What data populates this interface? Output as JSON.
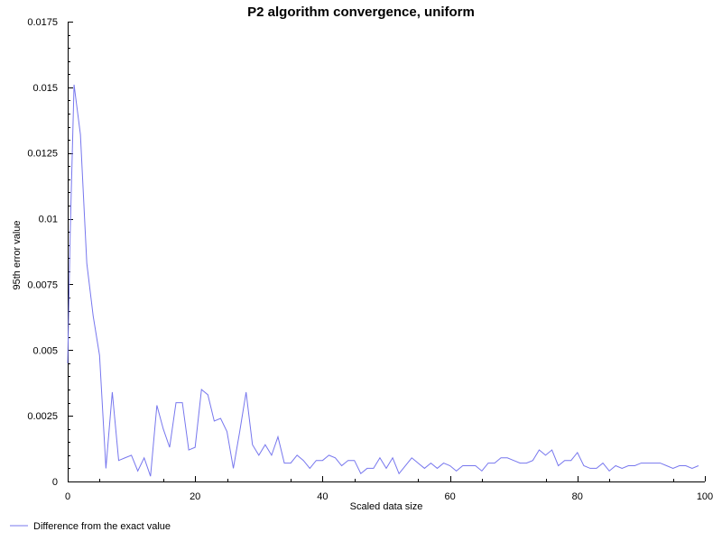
{
  "chart_data": {
    "type": "line",
    "title": "P2 algorithm convergence, uniform",
    "xlabel": "Scaled data size",
    "ylabel": "95th error value",
    "xlim": [
      0,
      100
    ],
    "ylim": [
      0,
      0.0175
    ],
    "xticks": [
      0,
      20,
      40,
      60,
      80,
      100
    ],
    "xtick_labels": [
      "0",
      "20",
      "40",
      "60",
      "80",
      "100"
    ],
    "yticks": [
      0,
      0.0025,
      0.005,
      0.0075,
      0.01,
      0.0125,
      0.015,
      0.0175
    ],
    "ytick_labels": [
      "0",
      "0.0025",
      "0.005",
      "0.0075",
      "0.01",
      "0.0125",
      "0.015",
      "0.0175"
    ],
    "grid": false,
    "legend_position": "bottom-left",
    "series": [
      {
        "name": "Difference from the exact value",
        "color": "#7777ee",
        "x": [
          0,
          0.4,
          1,
          2,
          3,
          4,
          5,
          6,
          7,
          8,
          9,
          10,
          11,
          12,
          13,
          14,
          15,
          16,
          17,
          18,
          19,
          20,
          21,
          22,
          23,
          24,
          25,
          26,
          27,
          28,
          29,
          30,
          31,
          32,
          33,
          34,
          35,
          36,
          37,
          38,
          39,
          40,
          41,
          42,
          43,
          44,
          45,
          46,
          47,
          48,
          49,
          50,
          51,
          52,
          53,
          54,
          55,
          56,
          57,
          58,
          59,
          60,
          61,
          62,
          63,
          64,
          65,
          66,
          67,
          68,
          69,
          70,
          71,
          72,
          73,
          74,
          75,
          76,
          77,
          78,
          79,
          80,
          81,
          82,
          83,
          84,
          85,
          86,
          87,
          88,
          89,
          90,
          91,
          92,
          93,
          94,
          95,
          96,
          97,
          98,
          99
        ],
        "y": [
          0.0045,
          0.0095,
          0.0151,
          0.0132,
          0.0083,
          0.0063,
          0.0048,
          0.0005,
          0.0034,
          0.0008,
          0.0009,
          0.001,
          0.0004,
          0.0009,
          0.0002,
          0.0029,
          0.002,
          0.0013,
          0.003,
          0.003,
          0.0012,
          0.0013,
          0.0035,
          0.0033,
          0.0023,
          0.0024,
          0.0019,
          0.0005,
          0.0019,
          0.0034,
          0.0014,
          0.001,
          0.0014,
          0.001,
          0.0017,
          0.0007,
          0.0007,
          0.001,
          0.0008,
          0.0005,
          0.0008,
          0.0008,
          0.001,
          0.0009,
          0.0006,
          0.0008,
          0.0008,
          0.0003,
          0.0005,
          0.0005,
          0.0009,
          0.0005,
          0.0009,
          0.0003,
          0.0006,
          0.0009,
          0.0007,
          0.0005,
          0.0007,
          0.0005,
          0.0007,
          0.0006,
          0.0004,
          0.0006,
          0.0006,
          0.0006,
          0.0004,
          0.0007,
          0.0007,
          0.0009,
          0.0009,
          0.0008,
          0.0007,
          0.0007,
          0.0008,
          0.0012,
          0.001,
          0.0012,
          0.0006,
          0.0008,
          0.0008,
          0.0011,
          0.0006,
          0.0005,
          0.0005,
          0.0007,
          0.0004,
          0.0006,
          0.0005,
          0.0006,
          0.0006,
          0.0007,
          0.0007,
          0.0007,
          0.0007,
          0.0006,
          0.0005,
          0.0006,
          0.0006,
          0.0005,
          0.0006
        ]
      }
    ]
  }
}
